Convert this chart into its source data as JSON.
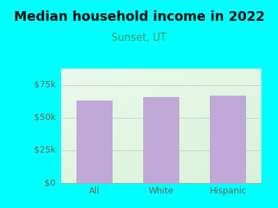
{
  "title": "Median household income in 2022",
  "subtitle": "Sunset, UT",
  "categories": [
    "All",
    "White",
    "Hispanic"
  ],
  "values": [
    63000,
    65500,
    67000
  ],
  "bar_color": "#c0a8d8",
  "title_fontsize": 13.5,
  "title_color": "#1a1a2e",
  "subtitle_fontsize": 10.5,
  "subtitle_color": "#3a9a6e",
  "tick_label_color": "#7a6050",
  "background_outer": "#00ffff",
  "ylim": [
    0,
    87500
  ],
  "yticks": [
    0,
    25000,
    50000,
    75000
  ],
  "ytick_labels": [
    "$0",
    "$25k",
    "$50k",
    "$75k"
  ],
  "grid_color": "#cccccc",
  "bar_width": 0.55
}
